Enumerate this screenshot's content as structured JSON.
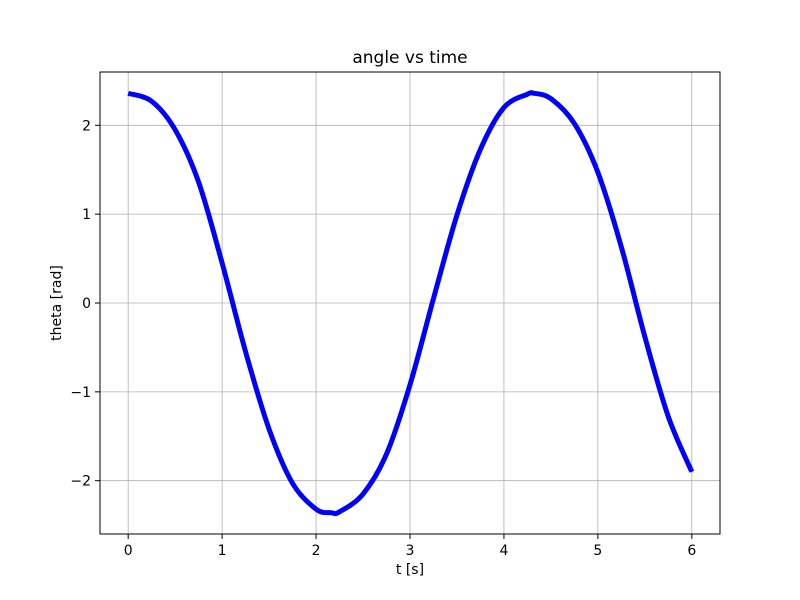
{
  "chart_data": {
    "type": "line",
    "title": "angle vs time",
    "xlabel": "t [s]",
    "ylabel": "theta [rad]",
    "xlim": [
      -0.3,
      6.3
    ],
    "ylim": [
      -2.6,
      2.6
    ],
    "x_ticks": [
      0,
      1,
      2,
      3,
      4,
      5,
      6
    ],
    "x_tick_labels": [
      "0",
      "1",
      "2",
      "3",
      "4",
      "5",
      "6"
    ],
    "y_ticks": [
      -2,
      -1,
      0,
      1,
      2
    ],
    "y_tick_labels": [
      "−2",
      "−1",
      "0",
      "1",
      "2"
    ],
    "grid": true,
    "series": [
      {
        "color": "#0000ff",
        "x": [
          0,
          0.25,
          0.5,
          0.75,
          1.0,
          1.25,
          1.5,
          1.75,
          2.0,
          2.16,
          2.25,
          2.5,
          2.75,
          3.0,
          3.25,
          3.5,
          3.75,
          4.0,
          4.25,
          4.32,
          4.5,
          4.75,
          5.0,
          5.25,
          5.5,
          5.75,
          6.0
        ],
        "y": [
          2.36,
          2.27,
          1.95,
          1.36,
          0.45,
          -0.55,
          -1.42,
          -2.03,
          -2.32,
          -2.36,
          -2.35,
          -2.15,
          -1.7,
          -0.92,
          0.05,
          0.99,
          1.73,
          2.2,
          2.35,
          2.36,
          2.3,
          2.02,
          1.47,
          0.63,
          -0.38,
          -1.28,
          -1.9
        ]
      }
    ]
  }
}
